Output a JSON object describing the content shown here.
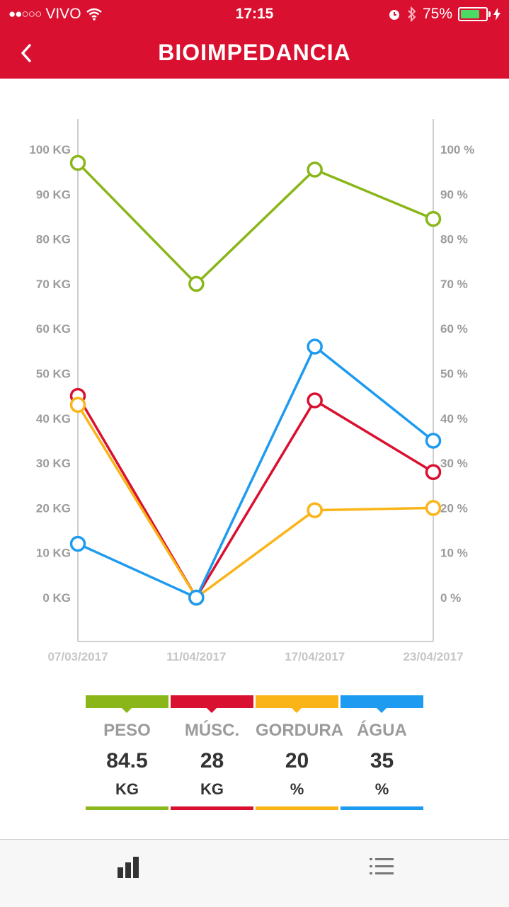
{
  "status_bar": {
    "carrier": "VIVO",
    "time": "17:15",
    "battery": "75%",
    "battery_level": 0.75
  },
  "header": {
    "title": "BIOIMPEDANCIA"
  },
  "chart_data": {
    "type": "line",
    "x": [
      "07/03/2017",
      "11/04/2017",
      "17/04/2017",
      "23/04/2017"
    ],
    "left_axis_ticks": [
      "100 KG",
      "90 KG",
      "80 KG",
      "70 KG",
      "60 KG",
      "50 KG",
      "40 KG",
      "30 KG",
      "20 KG",
      "10 KG",
      "0 KG"
    ],
    "right_axis_ticks": [
      "100 %",
      "90 %",
      "80 %",
      "70 %",
      "60 %",
      "50 %",
      "40 %",
      "30 %",
      "20 %",
      "10 %",
      "0 %"
    ],
    "ylim": [
      0,
      100
    ],
    "series": [
      {
        "name": "PESO",
        "color": "#8ab61a",
        "values": [
          97,
          70,
          95.5,
          84.5
        ]
      },
      {
        "name": "MÚSC.",
        "color": "#d9102f",
        "values": [
          45,
          0,
          44,
          28
        ]
      },
      {
        "name": "GORDURA",
        "color": "#fab417",
        "values": [
          43,
          0,
          19.5,
          20
        ]
      },
      {
        "name": "ÁGUA",
        "color": "#1d9bf0",
        "values": [
          12,
          0,
          56,
          35
        ]
      }
    ]
  },
  "legend": [
    {
      "name": "PESO",
      "value": "84.5",
      "unit": "KG",
      "color": "#8ab61a"
    },
    {
      "name": "MÚSC.",
      "value": "28",
      "unit": "KG",
      "color": "#d9102f"
    },
    {
      "name": "GORDURA",
      "value": "20",
      "unit": "%",
      "color": "#fab417"
    },
    {
      "name": "ÁGUA",
      "value": "35",
      "unit": "%",
      "color": "#1d9bf0"
    }
  ],
  "tabbar": {
    "chart_icon": "bar-chart-icon",
    "list_icon": "list-icon"
  }
}
